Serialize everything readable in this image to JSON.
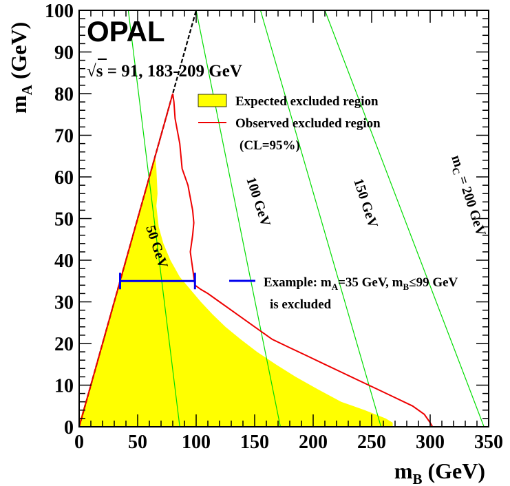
{
  "chart_data": {
    "type": "area",
    "experiment": "OPAL",
    "energy_label": "√s = 91, 183-209 GeV",
    "xlabel": "m",
    "xlabel_sub": "B",
    "xlabel_unit": "(GeV)",
    "ylabel": "m",
    "ylabel_sub": "A",
    "ylabel_unit": "(GeV)",
    "xlim": [
      0,
      350
    ],
    "ylim": [
      0,
      100
    ],
    "x_ticks": [
      0,
      50,
      100,
      150,
      200,
      250,
      300,
      350
    ],
    "y_ticks": [
      0,
      10,
      20,
      30,
      40,
      50,
      60,
      70,
      80,
      90,
      100
    ],
    "legend": {
      "placement": "top-right",
      "expected": "Expected excluded region",
      "observed": "Observed excluded region",
      "cl": "(CL=95%)"
    },
    "colors": {
      "expected_fill": "#ffff00",
      "observed_line": "#ee0000",
      "mc_lines": "#00dd00",
      "example_line": "#0000ee",
      "kinematic_line": "#000000"
    },
    "kinematic_limit": {
      "style": "dashed",
      "points": [
        [
          0,
          0
        ],
        [
          100,
          100
        ]
      ]
    },
    "expected_region": [
      [
        0,
        0
      ],
      [
        0,
        1
      ],
      [
        18,
        18
      ],
      [
        36,
        36
      ],
      [
        54,
        54
      ],
      [
        65,
        65
      ],
      [
        66,
        62
      ],
      [
        67,
        56
      ],
      [
        66,
        53
      ],
      [
        68,
        48
      ],
      [
        72,
        44
      ],
      [
        78,
        40
      ],
      [
        86,
        36
      ],
      [
        95,
        33
      ],
      [
        104,
        30
      ],
      [
        114,
        27
      ],
      [
        125,
        24
      ],
      [
        138,
        21
      ],
      [
        152,
        18
      ],
      [
        168,
        15
      ],
      [
        185,
        12
      ],
      [
        204,
        9
      ],
      [
        224,
        6
      ],
      [
        244,
        4
      ],
      [
        262,
        2
      ],
      [
        268,
        1
      ],
      [
        268,
        0
      ],
      [
        0,
        0
      ]
    ],
    "observed_boundary": [
      [
        0,
        0
      ],
      [
        20,
        20
      ],
      [
        40,
        40
      ],
      [
        60,
        60
      ],
      [
        80,
        80
      ],
      [
        81,
        78
      ],
      [
        82,
        74
      ],
      [
        84,
        71
      ],
      [
        86,
        68
      ],
      [
        87,
        65
      ],
      [
        88,
        62
      ],
      [
        93,
        58
      ],
      [
        95,
        55
      ],
      [
        97,
        52
      ],
      [
        98,
        49
      ],
      [
        97,
        46
      ],
      [
        96,
        44
      ],
      [
        95,
        42
      ],
      [
        96,
        40
      ],
      [
        97,
        38
      ],
      [
        98,
        36
      ],
      [
        99,
        34
      ],
      [
        104,
        33
      ],
      [
        110,
        32
      ],
      [
        120,
        30
      ],
      [
        130,
        28
      ],
      [
        140,
        26
      ],
      [
        150,
        24
      ],
      [
        165,
        21
      ],
      [
        180,
        19
      ],
      [
        195,
        17
      ],
      [
        210,
        15
      ],
      [
        225,
        13
      ],
      [
        240,
        11
      ],
      [
        255,
        9
      ],
      [
        270,
        7
      ],
      [
        285,
        5
      ],
      [
        295,
        3
      ],
      [
        300,
        1
      ],
      [
        302,
        0
      ]
    ],
    "mc_contours": [
      {
        "label": "50 GeV",
        "points": [
          [
            42,
            100
          ],
          [
            86,
            0
          ]
        ]
      },
      {
        "label": "100 GeV",
        "points": [
          [
            100,
            100
          ],
          [
            172,
            0
          ]
        ]
      },
      {
        "label": "150 GeV",
        "points": [
          [
            155,
            100
          ],
          [
            258,
            0
          ]
        ]
      },
      {
        "label": "m",
        "label_sub": "C",
        "label_rest": " = 200 GeV",
        "points": [
          [
            210,
            100
          ],
          [
            346,
            0
          ]
        ]
      }
    ],
    "example": {
      "m_A": 35,
      "m_B_min": 35,
      "m_B_max": 99,
      "text_line1_pre": "Example: m",
      "text_line1_sub1": "A",
      "text_line1_mid": "=35 GeV, m",
      "text_line1_sub2": "B",
      "text_line1_post": "≤99 GeV",
      "text_line2": "is excluded"
    }
  }
}
